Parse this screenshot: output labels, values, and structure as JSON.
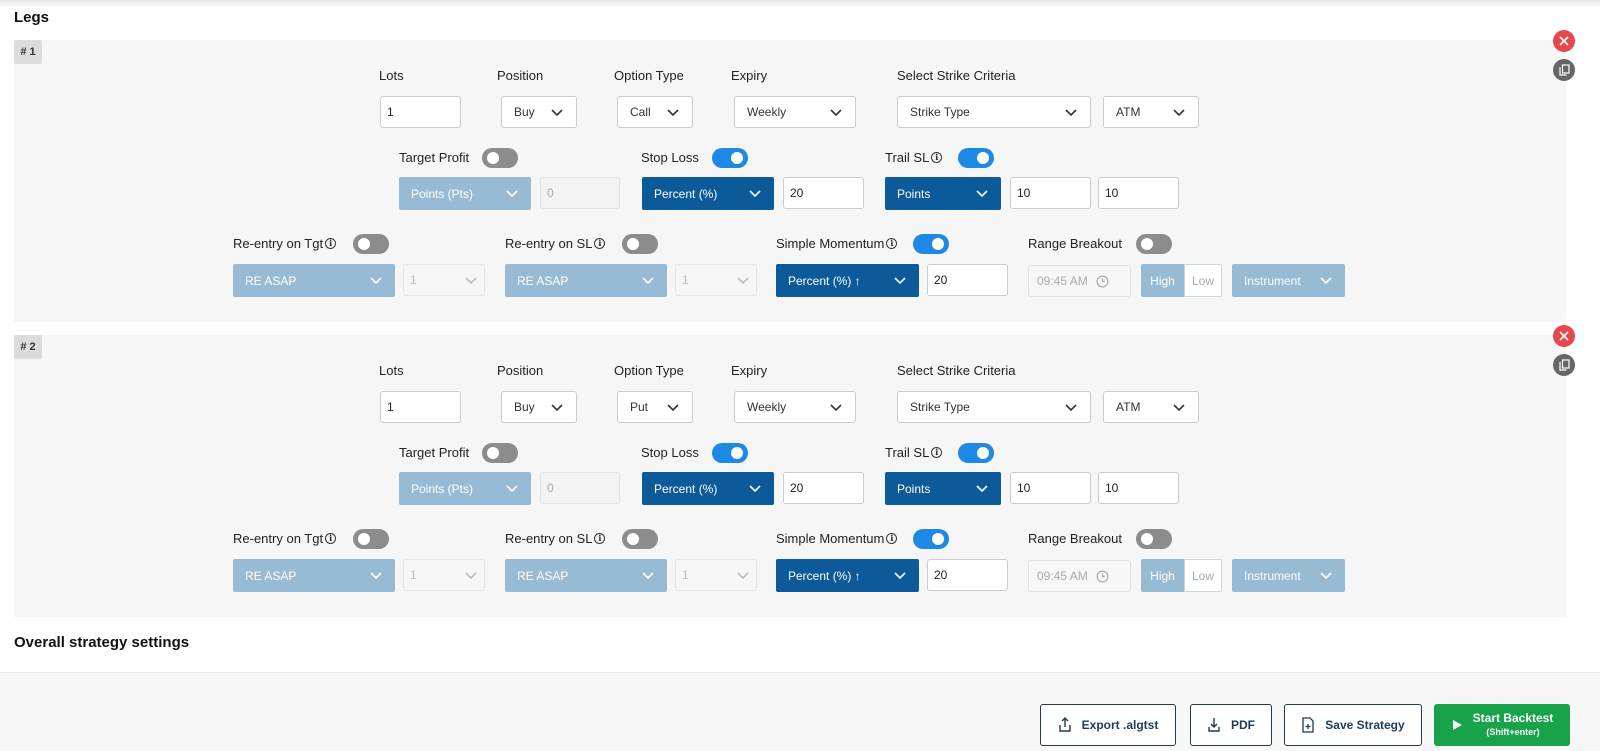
{
  "headings": {
    "legs": "Legs",
    "overall": "Overall strategy settings"
  },
  "labels": {
    "lots": "Lots",
    "position": "Position",
    "option_type": "Option Type",
    "expiry": "Expiry",
    "strike_criteria": "Select Strike Criteria",
    "target_profit": "Target Profit",
    "stop_loss": "Stop Loss",
    "trail_sl": "Trail SL",
    "reentry_tgt": "Re-entry on Tgt",
    "reentry_sl": "Re-entry on SL",
    "simple_momentum": "Simple Momentum",
    "range_breakout": "Range Breakout"
  },
  "info_glyph": "i",
  "legs": [
    {
      "number": "# 1",
      "lots": "1",
      "position": "Buy",
      "option_type": "Call",
      "expiry": "Weekly",
      "strike_type": "Strike Type",
      "strike_value": "ATM",
      "target_profit": {
        "enabled": false,
        "unit": "Points (Pts)",
        "value": "0"
      },
      "stop_loss": {
        "enabled": true,
        "unit": "Percent (%)",
        "value": "20"
      },
      "trail_sl": {
        "enabled": true,
        "unit": "Points",
        "value1": "10",
        "value2": "10"
      },
      "reentry_tgt": {
        "enabled": false,
        "mode": "RE ASAP",
        "count": "1"
      },
      "reentry_sl": {
        "enabled": false,
        "mode": "RE ASAP",
        "count": "1"
      },
      "simple_momentum": {
        "enabled": true,
        "unit": "Percent (%) ↑",
        "value": "20"
      },
      "range_breakout": {
        "enabled": false,
        "time": "09:45 AM",
        "high": "High",
        "low": "Low",
        "instrument": "Instrument"
      }
    },
    {
      "number": "# 2",
      "lots": "1",
      "position": "Buy",
      "option_type": "Put",
      "expiry": "Weekly",
      "strike_type": "Strike Type",
      "strike_value": "ATM",
      "target_profit": {
        "enabled": false,
        "unit": "Points (Pts)",
        "value": "0"
      },
      "stop_loss": {
        "enabled": true,
        "unit": "Percent (%)",
        "value": "20"
      },
      "trail_sl": {
        "enabled": true,
        "unit": "Points",
        "value1": "10",
        "value2": "10"
      },
      "reentry_tgt": {
        "enabled": false,
        "mode": "RE ASAP",
        "count": "1"
      },
      "reentry_sl": {
        "enabled": false,
        "mode": "RE ASAP",
        "count": "1"
      },
      "simple_momentum": {
        "enabled": true,
        "unit": "Percent (%) ↑",
        "value": "20"
      },
      "range_breakout": {
        "enabled": false,
        "time": "09:45 AM",
        "high": "High",
        "low": "Low",
        "instrument": "Instrument"
      }
    }
  ],
  "footer": {
    "export": "Export .algtst",
    "pdf": "PDF",
    "save": "Save Strategy",
    "start": "Start Backtest",
    "start_hint": "(Shift+enter)"
  },
  "colors": {
    "active_blue": "#0d5a9a",
    "disabled_blue": "#98bbd5",
    "toggle_on": "#1e88e5",
    "toggle_off": "#8c8c8c",
    "delete_red": "#e5484d",
    "start_green": "#18a24a"
  }
}
